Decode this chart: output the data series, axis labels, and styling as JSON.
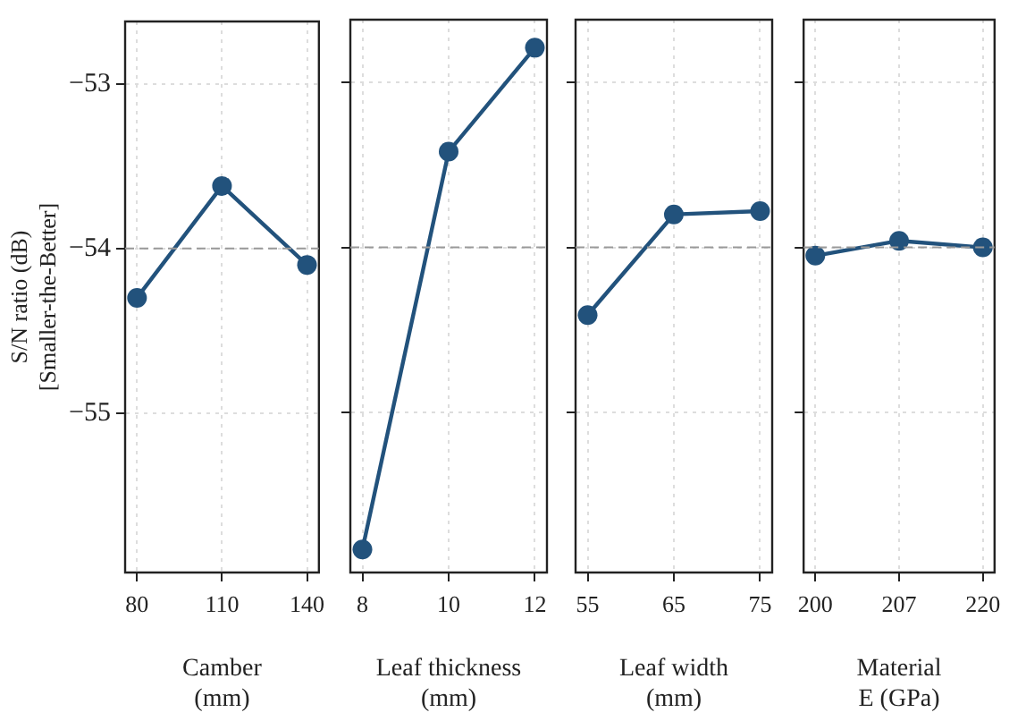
{
  "chart_data": [
    {
      "type": "line",
      "categories": [
        "80",
        "110",
        "140"
      ],
      "xlabel": "Camber\n(mm)",
      "ylabel": "S/N ratio (dB)\n[Smaller-the-Better]",
      "series": [
        {
          "color": "#22527c",
          "values": [
            -54.3,
            -53.62,
            -54.1
          ]
        }
      ],
      "ylim": [
        -55.97,
        -52.62
      ],
      "yticks": [
        -53,
        -54,
        -55
      ],
      "grid": true,
      "marker": "circle",
      "line_style": "solid",
      "ref_lines": [
        {
          "axis": "y",
          "value": -54,
          "color": "#999999",
          "line_style": "dashed"
        }
      ]
    },
    {
      "type": "line",
      "categories": [
        "8",
        "10",
        "12"
      ],
      "xlabel": "Leaf thickness\n(mm)",
      "series": [
        {
          "color": "#22527c",
          "values": [
            -55.83,
            -53.42,
            -52.79
          ]
        }
      ],
      "ylim": [
        -55.97,
        -52.62
      ],
      "yticks": [
        -53,
        -54,
        -55
      ],
      "tick_labels": "x",
      "grid": true,
      "marker": "circle",
      "line_style": "solid",
      "ref_lines": [
        {
          "axis": "y",
          "value": -54,
          "color": "#999999",
          "line_style": "dashed"
        }
      ]
    },
    {
      "type": "line",
      "categories": [
        "55",
        "65",
        "75"
      ],
      "xlabel": "Leaf width\n(mm)",
      "series": [
        {
          "color": "#22527c",
          "values": [
            -54.41,
            -53.8,
            -53.78
          ]
        }
      ],
      "ylim": [
        -55.97,
        -52.62
      ],
      "yticks": [
        -53,
        -54,
        -55
      ],
      "tick_labels": "x",
      "grid": true,
      "marker": "circle",
      "line_style": "solid",
      "ref_lines": [
        {
          "axis": "y",
          "value": -54,
          "color": "#999999",
          "line_style": "dashed"
        }
      ]
    },
    {
      "type": "line",
      "categories": [
        "200",
        "207",
        "220"
      ],
      "xlabel": "Material\nE (GPa)",
      "series": [
        {
          "color": "#22527c",
          "values": [
            -54.05,
            -53.96,
            -54.0
          ]
        }
      ],
      "ylim": [
        -55.97,
        -52.62
      ],
      "yticks": [
        -53,
        -54,
        -55
      ],
      "tick_labels": "x",
      "grid": true,
      "marker": "circle",
      "line_style": "solid",
      "ref_lines": [
        {
          "axis": "y",
          "value": -54,
          "color": "#999999",
          "line_style": "dashed"
        }
      ]
    }
  ]
}
